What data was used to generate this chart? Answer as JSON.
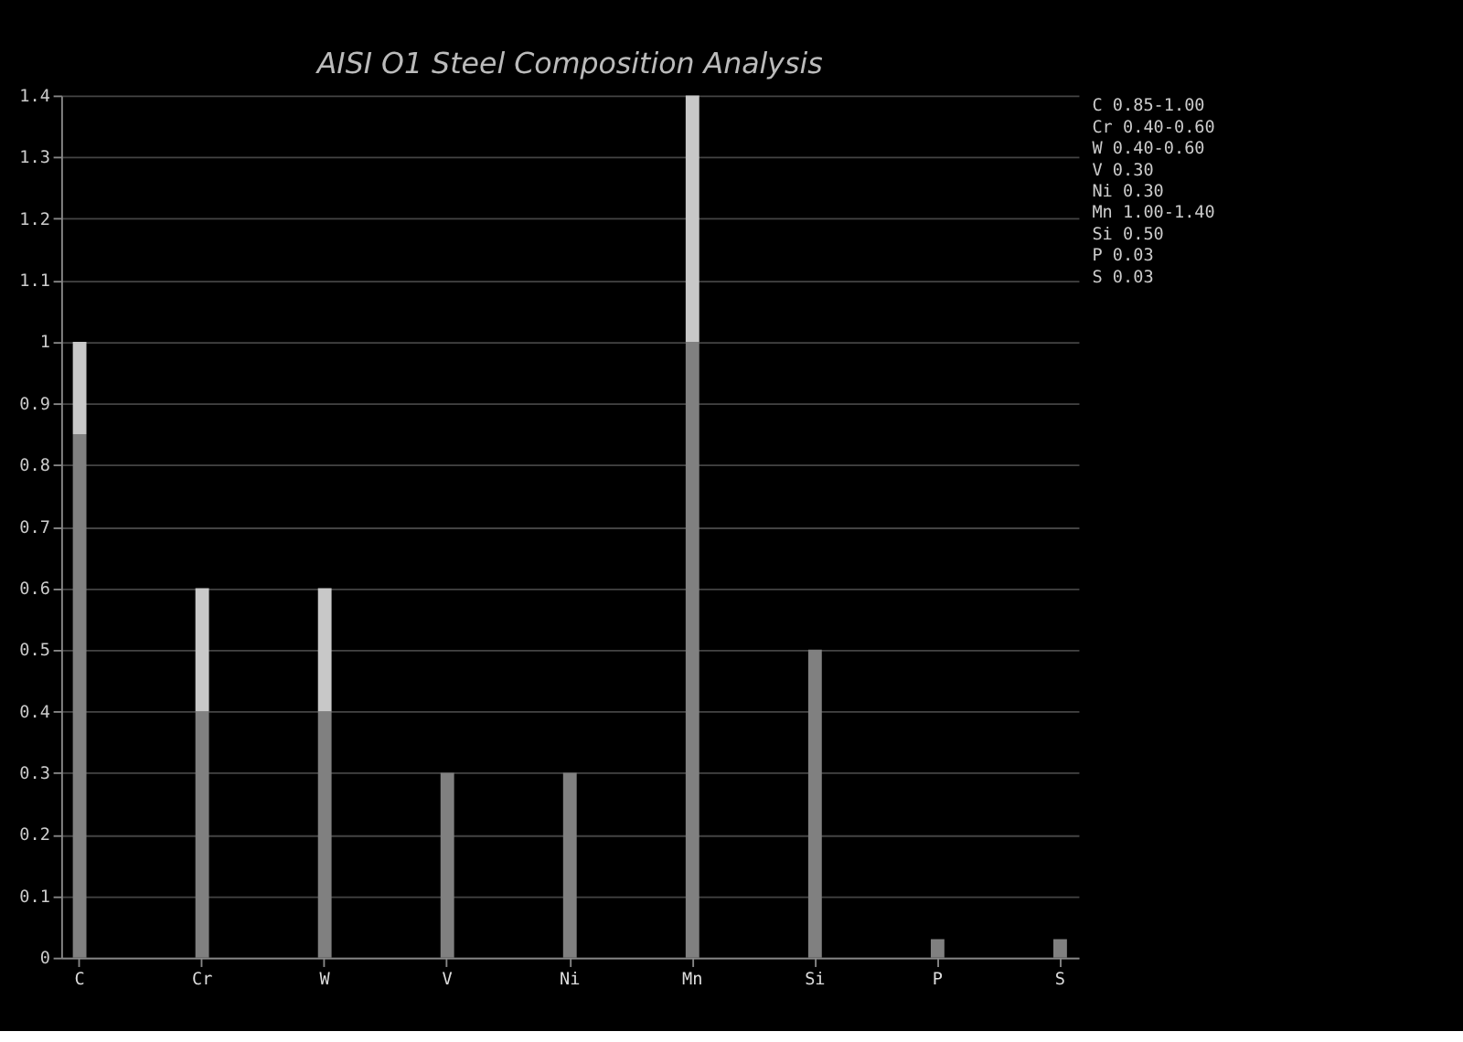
{
  "chart_data": {
    "type": "bar",
    "title": "AISI O1 Steel Composition Analysis",
    "categories": [
      "C",
      "Cr",
      "W",
      "V",
      "Ni",
      "Mn",
      "Si",
      "P",
      "S"
    ],
    "stacked": true,
    "series": [
      {
        "color": "#808080",
        "values": [
          0.85,
          0.4,
          0.4,
          0.3,
          0.3,
          1.0,
          0.5,
          0.03,
          0.03
        ]
      },
      {
        "color": "#c8c8c8",
        "values": [
          0.15,
          0.2,
          0.2,
          null,
          null,
          0.4,
          null,
          null,
          null
        ]
      }
    ],
    "ylim": [
      0,
      1.4
    ],
    "yticks": [
      0,
      0.1,
      0.2,
      0.3,
      0.4,
      0.5,
      0.6,
      0.7,
      0.8,
      0.9,
      1,
      1.1,
      1.2,
      1.3,
      1.4
    ],
    "grid": "y",
    "annotations": [
      "C  0.85-1.00",
      "Cr 0.40-0.60",
      "W  0.40-0.60",
      "V  0.30",
      "Ni 0.30",
      "Mn 1.00-1.40",
      "Si 0.50",
      "P  0.03",
      "S  0.03"
    ]
  }
}
